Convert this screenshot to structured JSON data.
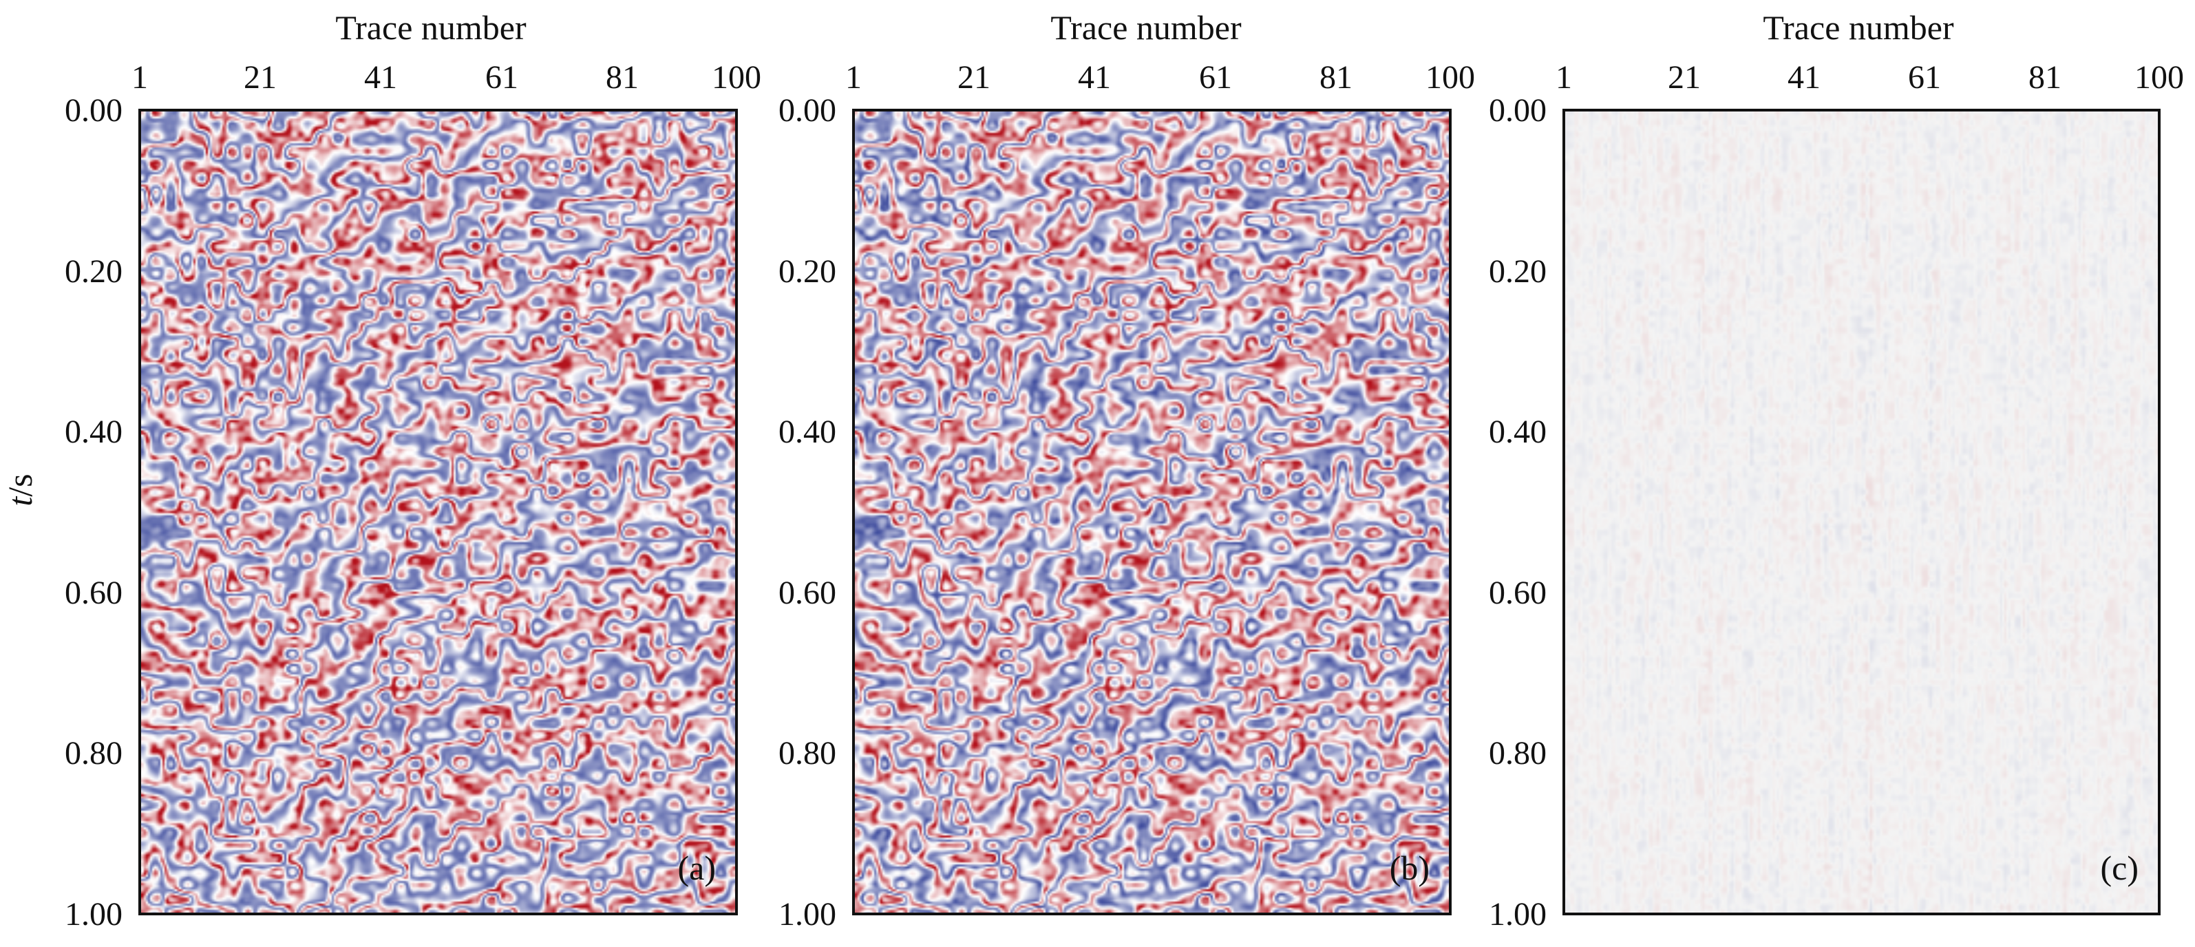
{
  "figure": {
    "y_axis_label_italic": "t",
    "y_axis_label_rest": "/s",
    "colors": {
      "positive": "#b3121c",
      "negative": "#1c2c8c",
      "background": "#ffffff",
      "axis": "#111111"
    }
  },
  "chart_data": [
    {
      "type": "heatmap",
      "panel_label": "(a)",
      "xlabel": "Trace number",
      "x_ticks": [
        "1",
        "21",
        "41",
        "61",
        "81",
        "100"
      ],
      "y_ticks": [
        "0.00",
        "0.20",
        "0.40",
        "0.60",
        "0.80",
        "1.00"
      ],
      "xlim": [
        1,
        100
      ],
      "ylim": [
        1.0,
        0.0
      ],
      "content": "seismic section",
      "amplitude_scale": 1.0,
      "noise": 0.55
    },
    {
      "type": "heatmap",
      "panel_label": "(b)",
      "xlabel": "Trace number",
      "x_ticks": [
        "1",
        "21",
        "41",
        "61",
        "81",
        "100"
      ],
      "y_ticks": [
        "0.00",
        "0.20",
        "0.40",
        "0.60",
        "0.80",
        "1.00"
      ],
      "xlim": [
        1,
        100
      ],
      "ylim": [
        1.0,
        0.0
      ],
      "content": "seismic section",
      "amplitude_scale": 1.0,
      "noise": 0.3
    },
    {
      "type": "heatmap",
      "panel_label": "(c)",
      "xlabel": "Trace number",
      "x_ticks": [
        "1",
        "21",
        "41",
        "61",
        "81",
        "100"
      ],
      "y_ticks": [
        "0.00",
        "0.20",
        "0.40",
        "0.60",
        "0.80",
        "1.00"
      ],
      "xlim": [
        1,
        100
      ],
      "ylim": [
        1.0,
        0.0
      ],
      "content": "residual noise",
      "amplitude_scale": 0.12,
      "noise": 1.0
    }
  ]
}
